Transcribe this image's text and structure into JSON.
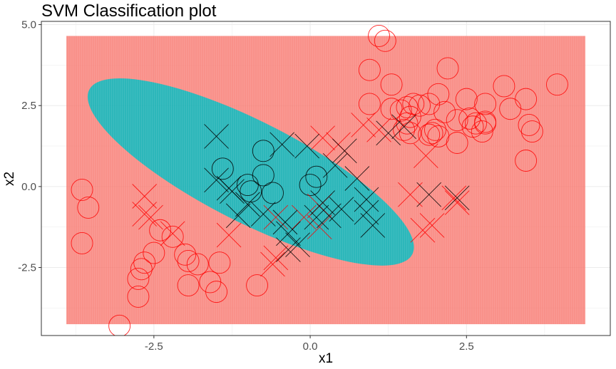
{
  "chart_data": {
    "type": "scatter",
    "title": "SVM Classification plot",
    "xlabel": "x1",
    "ylabel": "x2",
    "xlim": [
      -4.3,
      4.8
    ],
    "ylim": [
      -4.6,
      5.1
    ],
    "x_ticks": [
      -2.5,
      0.0,
      2.5
    ],
    "x_tick_labels": [
      "-2.5",
      "0.0",
      "2.5"
    ],
    "y_ticks": [
      -2.5,
      0.0,
      2.5,
      5.0
    ],
    "y_tick_labels": [
      "-2.5",
      "0.0",
      "2.5",
      "5.0"
    ],
    "grid": true,
    "background": {
      "type": "decision_region",
      "x_range": [
        -3.9,
        4.4
      ],
      "y_range": [
        -4.25,
        4.65
      ],
      "class_colors": {
        "outer": "#F8766D",
        "inner": "#00BFC4"
      },
      "inner_region_ellipse": {
        "center": [
          -0.95,
          0.45
        ],
        "semi_axis_major": 2.9,
        "semi_axis_minor": 1.55,
        "angle_deg": -27
      }
    },
    "colors": {
      "red": "#FF0000",
      "black": "#000000"
    },
    "series": [
      {
        "marker": "circle",
        "color": "red",
        "points": [
          [
            -3.65,
            -0.1
          ],
          [
            -3.55,
            -0.65
          ],
          [
            -3.65,
            -1.75
          ],
          [
            -3.05,
            -4.3
          ],
          [
            -2.4,
            -1.35
          ],
          [
            -2.2,
            -1.55
          ],
          [
            -2.5,
            -2.05
          ],
          [
            -2.65,
            -2.35
          ],
          [
            -2.7,
            -2.55
          ],
          [
            -2.75,
            -2.85
          ],
          [
            -2.75,
            -3.4
          ],
          [
            -2.0,
            -2.1
          ],
          [
            -1.95,
            -2.3
          ],
          [
            -1.8,
            -2.4
          ],
          [
            -1.95,
            -3.05
          ],
          [
            -1.6,
            -2.95
          ],
          [
            -1.5,
            -3.25
          ],
          [
            -1.45,
            -2.35
          ],
          [
            -0.85,
            -3.05
          ],
          [
            1.1,
            4.65
          ],
          [
            1.2,
            4.5
          ],
          [
            0.95,
            3.6
          ],
          [
            1.3,
            3.15
          ],
          [
            2.2,
            3.65
          ],
          [
            0.95,
            2.55
          ],
          [
            1.3,
            2.4
          ],
          [
            1.45,
            2.35
          ],
          [
            1.55,
            2.45
          ],
          [
            1.65,
            2.55
          ],
          [
            1.75,
            2.5
          ],
          [
            1.6,
            2.15
          ],
          [
            1.55,
            1.95
          ],
          [
            1.5,
            1.75
          ],
          [
            1.6,
            1.65
          ],
          [
            1.9,
            2.55
          ],
          [
            2.05,
            2.85
          ],
          [
            2.15,
            2.3
          ],
          [
            1.9,
            1.6
          ],
          [
            2.0,
            1.75
          ],
          [
            1.95,
            1.65
          ],
          [
            2.05,
            1.55
          ],
          [
            2.35,
            2.05
          ],
          [
            2.5,
            2.7
          ],
          [
            2.55,
            2.1
          ],
          [
            2.65,
            1.95
          ],
          [
            2.6,
            1.85
          ],
          [
            2.75,
            1.7
          ],
          [
            2.8,
            2.0
          ],
          [
            2.8,
            1.95
          ],
          [
            2.8,
            2.55
          ],
          [
            2.35,
            1.35
          ],
          [
            3.1,
            3.1
          ],
          [
            3.2,
            2.4
          ],
          [
            3.45,
            2.7
          ],
          [
            3.5,
            1.9
          ],
          [
            3.55,
            1.7
          ],
          [
            3.45,
            0.8
          ],
          [
            3.95,
            3.15
          ]
        ]
      },
      {
        "marker": "circle",
        "color": "black",
        "points": [
          [
            -1.4,
            0.55
          ],
          [
            -0.75,
            1.1
          ],
          [
            -0.75,
            0.35
          ],
          [
            -1.0,
            0.05
          ],
          [
            -0.95,
            -0.15
          ],
          [
            -0.6,
            -0.2
          ],
          [
            0.0,
            0.05
          ],
          [
            0.1,
            0.3
          ]
        ]
      },
      {
        "marker": "cross",
        "color": "red",
        "points": [
          [
            -2.65,
            -0.3
          ],
          [
            -2.65,
            -0.85
          ],
          [
            -2.55,
            -0.95
          ],
          [
            -2.2,
            -1.45
          ],
          [
            -1.3,
            -1.5
          ],
          [
            -0.55,
            -0.95
          ],
          [
            -0.55,
            -2.2
          ],
          [
            -0.6,
            -2.4
          ],
          [
            -0.1,
            -0.95
          ],
          [
            0.15,
            -0.6
          ],
          [
            0.15,
            -1.25
          ],
          [
            0.2,
            1.5
          ],
          [
            0.45,
            1.3
          ],
          [
            0.85,
            1.9
          ],
          [
            1.1,
            1.75
          ],
          [
            1.85,
            0.95
          ],
          [
            1.6,
            -0.25
          ],
          [
            1.95,
            -1.2
          ],
          [
            1.8,
            -1.35
          ],
          [
            2.3,
            -0.35
          ],
          [
            2.35,
            -0.5
          ]
        ]
      },
      {
        "marker": "cross",
        "color": "black",
        "points": [
          [
            -1.5,
            1.55
          ],
          [
            -1.5,
            0.2
          ],
          [
            -1.3,
            -0.05
          ],
          [
            -1.25,
            -0.15
          ],
          [
            -1.15,
            -0.9
          ],
          [
            -1.0,
            -0.55
          ],
          [
            -0.75,
            -0.85
          ],
          [
            -0.45,
            1.3
          ],
          [
            -0.4,
            -1.1
          ],
          [
            -0.35,
            -1.45
          ],
          [
            -0.35,
            -1.95
          ],
          [
            -0.2,
            -1.8
          ],
          [
            -0.05,
            1.25
          ],
          [
            0.1,
            -0.95
          ],
          [
            0.2,
            -0.5
          ],
          [
            0.3,
            -0.9
          ],
          [
            0.4,
            0.65
          ],
          [
            0.5,
            -0.7
          ],
          [
            0.55,
            1.1
          ],
          [
            0.75,
            0.25
          ],
          [
            0.9,
            -0.4
          ],
          [
            0.9,
            -0.8
          ],
          [
            1.0,
            -1.2
          ],
          [
            1.25,
            1.65
          ],
          [
            1.5,
            1.85
          ],
          [
            1.9,
            -0.25
          ],
          [
            2.35,
            -0.35
          ]
        ]
      }
    ]
  }
}
